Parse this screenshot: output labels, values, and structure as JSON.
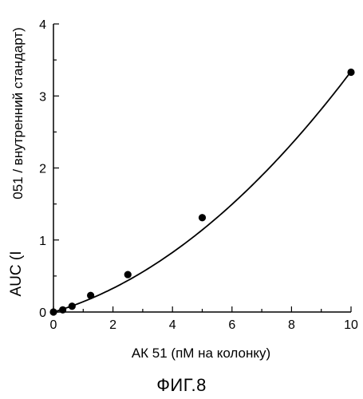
{
  "chart_data": {
    "type": "scatter",
    "xlabel": "АК 51 (пМ на колонку)",
    "ylabel_parts": [
      "AUC (I",
      "051 / внутренний стандарт)"
    ],
    "xlim": [
      0,
      10
    ],
    "ylim": [
      0,
      4
    ],
    "xticks": [
      0,
      2,
      4,
      6,
      8,
      10
    ],
    "yticks": [
      0,
      1,
      2,
      3,
      4
    ],
    "grid": false,
    "series": [
      {
        "x": [
          0,
          0.3125,
          0.625,
          1.25,
          2.5,
          5,
          10
        ],
        "y": [
          0.0,
          0.03,
          0.08,
          0.23,
          0.52,
          1.31,
          3.33
        ]
      }
    ],
    "fit_line": {
      "type": "quadratic",
      "a": 0.0212,
      "b": 0.122,
      "c": 0.0,
      "x_range": [
        0,
        10
      ]
    }
  },
  "caption": "ФИГ.8"
}
